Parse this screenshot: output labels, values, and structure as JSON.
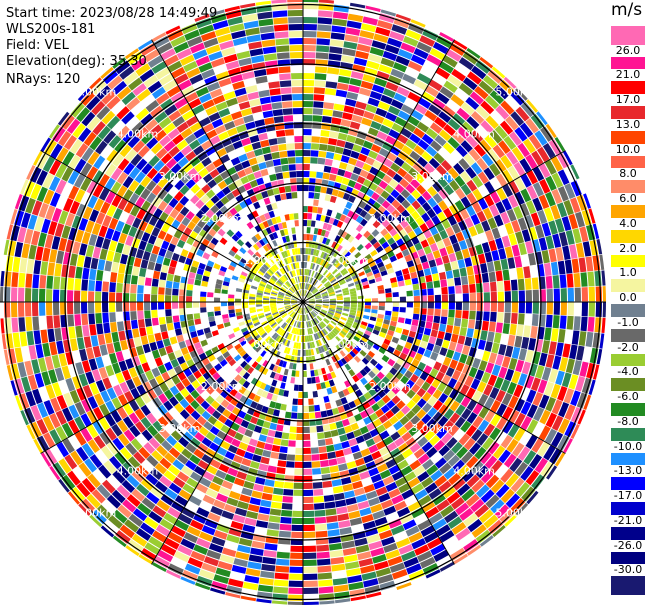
{
  "header": {
    "start_time": "Start time: 2023/08/28 14:49:49",
    "instrument": "WLS200s-181",
    "field": "Field: VEL",
    "elevation": "Elevation(deg): 35.30",
    "nrays": "NRays: 120"
  },
  "colorbar": {
    "unit": "m/s",
    "ticks": [
      "26.0",
      "21.0",
      "17.0",
      "13.0",
      "10.0",
      "8.0",
      "6.0",
      "4.0",
      "2.0",
      "1.0",
      "0.0",
      "-1.0",
      "-2.0",
      "-4.0",
      "-6.0",
      "-8.0",
      "-10.0",
      "-13.0",
      "-17.0",
      "-21.0",
      "-26.0",
      "-30.0"
    ],
    "colors": [
      "#ff69b4",
      "#ff1493",
      "#ff0000",
      "#e8282c",
      "#ff4500",
      "#ff6347",
      "#ff8c69",
      "#ffa500",
      "#ffd700",
      "#ffff00",
      "#f5f5a0",
      "#708090",
      "#696969",
      "#9acd32",
      "#6b8e23",
      "#228b22",
      "#2e8b57",
      "#1e90ff",
      "#0000ff",
      "#0000cd",
      "#00008b",
      "#000080",
      "#191970"
    ]
  },
  "chart_data": {
    "type": "ppi",
    "field": "VEL",
    "elevation_deg": 35.3,
    "n_rays": 120,
    "range_labels": [
      "1.00km",
      "2.00km",
      "3.00km",
      "4.00km",
      "5.00km"
    ],
    "range_rings_km": [
      1,
      2,
      3,
      4,
      5
    ]
  }
}
